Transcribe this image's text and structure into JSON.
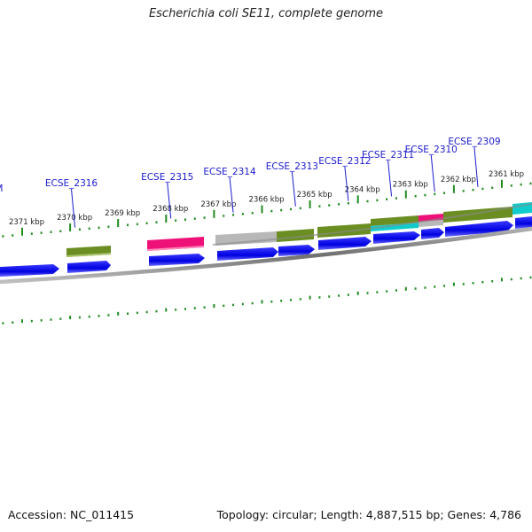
{
  "header": {
    "title": "Escherichia coli SE11, complete genome"
  },
  "footer": {
    "accession": "Accession: NC_011415",
    "summary": "Topology: circular; Length: 4,887,515 bp; Genes: 4,786"
  },
  "scale": {
    "tick_labels": [
      {
        "kbp": 2371,
        "label": "2371 kbp"
      },
      {
        "kbp": 2370,
        "label": "2370 kbp"
      },
      {
        "kbp": 2369,
        "label": "2369 kbp"
      },
      {
        "kbp": 2368,
        "label": "2368 kbp"
      },
      {
        "kbp": 2367,
        "label": "2367 kbp"
      },
      {
        "kbp": 2366,
        "label": "2366 kbp"
      },
      {
        "kbp": 2365,
        "label": "2365 kbp"
      },
      {
        "kbp": 2364,
        "label": "2364 kbp"
      },
      {
        "kbp": 2363,
        "label": "2363 kbp"
      },
      {
        "kbp": 2362,
        "label": "2362 kbp"
      },
      {
        "kbp": 2361,
        "label": "2361 kbp"
      }
    ]
  },
  "genes": [
    {
      "name": "wcaM",
      "kbp": 2371.6
    },
    {
      "name": "ECSE_2316",
      "kbp": 2369.9
    },
    {
      "name": "ECSE_2315",
      "kbp": 2367.9
    },
    {
      "name": "ECSE_2314",
      "kbp": 2366.6
    },
    {
      "name": "ECSE_2313",
      "kbp": 2365.3
    },
    {
      "name": "ECSE_2312",
      "kbp": 2364.2
    },
    {
      "name": "ECSE_2311",
      "kbp": 2363.3
    },
    {
      "name": "ECSE_2310",
      "kbp": 2362.4
    },
    {
      "name": "ECSE_2309",
      "kbp": 2361.5
    }
  ],
  "colors": {
    "gene_cds": "#0000ee",
    "olive": "#6b8e23",
    "magenta": "#ee1177",
    "gray": "#b8b8b8",
    "cyan": "#11cccc",
    "backbone": "#808080",
    "tick": "#228b22",
    "label_link": "#1a1acc"
  }
}
